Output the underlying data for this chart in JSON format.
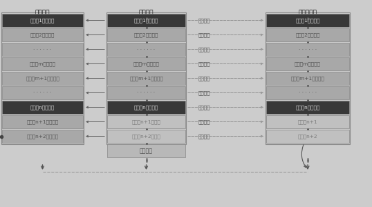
{
  "title_left": "交易记录",
  "title_mid": "源端日志",
  "title_right": "目标端日志",
  "bg_color": "#cccccc",
  "rows": [
    {
      "left": "时间点1，已记录",
      "mid": "时间点1，已提交",
      "right": "时间点1，已装载",
      "label": "已经复制",
      "left_dark": true,
      "mid_dark": true,
      "right_dark": true
    },
    {
      "left": "时间点2，已记录",
      "mid": "时间点2，已提交",
      "right": "时间点2，已装载",
      "label": "已经复制",
      "left_dark": false,
      "mid_dark": false,
      "right_dark": false
    },
    {
      "left": "· · · · · ·",
      "mid": "· · · · · ·",
      "right": "· · · · · ·",
      "label": "已经复制",
      "left_dark": false,
      "mid_dark": false,
      "right_dark": false
    },
    {
      "left": "时间点m，已记录",
      "mid": "时间点m，已提交",
      "right": "时间点m，已装载",
      "label": "已经复制",
      "left_dark": false,
      "mid_dark": false,
      "right_dark": false
    },
    {
      "left": "时间点m+1，已记录",
      "mid": "时间点m+1，已提交",
      "right": "时间点m+1，已装载",
      "label": "已经复制",
      "left_dark": false,
      "mid_dark": false,
      "right_dark": false
    },
    {
      "left": "· · · · · ·",
      "mid": "· · · · · ·",
      "right": "· · · · · ·",
      "label": "已经复制",
      "left_dark": false,
      "mid_dark": false,
      "right_dark": false
    },
    {
      "left": "时间点n，已记录",
      "mid": "时间点n，已提交",
      "right": "时间点n，已装载",
      "label": "已经复制",
      "left_dark": true,
      "mid_dark": true,
      "right_dark": true
    },
    {
      "left": "时间点n+1，已记录",
      "mid": "时间点n+1，提交",
      "right": "时间点n+1",
      "label": "没有复制",
      "left_dark": false,
      "mid_dark": false,
      "right_dark": false
    },
    {
      "left": "时间点n+2，已记录",
      "mid": "时间点n+2，提交",
      "right": "时间点n+2",
      "label": "没有复制",
      "left_dark": false,
      "mid_dark": false,
      "right_dark": false
    }
  ],
  "system_crash": "系统宕机",
  "col_border": "#888888",
  "dark_face": "#383838",
  "dark_text": "#e8e8e8",
  "mid_face": "#a8a8a8",
  "mid_text": "#505050",
  "light_face": "#c0c0c0",
  "light_text": "#787878",
  "crash_face": "#b8b8b8",
  "crash_text": "#444444",
  "label_color": "#444444",
  "solid_arrow": "#606060",
  "dash_arrow": "#909090",
  "dot_color": "#555555",
  "bottom_arrow": "#555555",
  "hline_color": "#999999"
}
